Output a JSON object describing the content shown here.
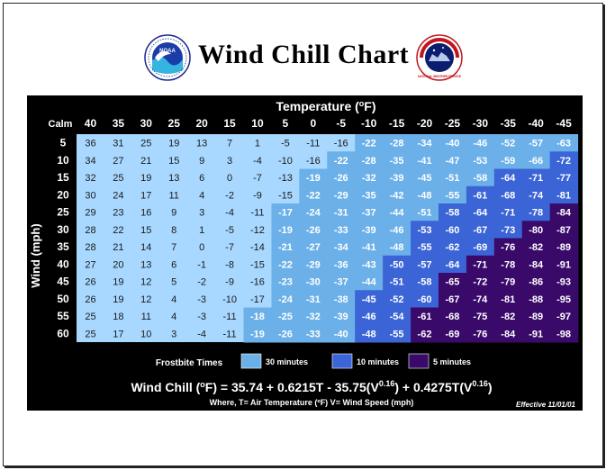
{
  "title": "Wind Chill Chart",
  "header": {
    "noaa_logo_text": "NOAA",
    "nws_logo_text": "NATIONAL WEATHER SERVICE"
  },
  "colors": {
    "panel_bg": "#000000",
    "band_30_minutes": "#6bb0e8",
    "band_10_minutes": "#3b64d6",
    "band_5_minutes": "#3a0a6a",
    "no_risk": "#a8d8ff"
  },
  "chart_data": {
    "type": "table",
    "title": "Temperature (ºF)",
    "ylabel": "Wind (mph)",
    "corner_label": "Calm",
    "temperatures": [
      40,
      35,
      30,
      25,
      20,
      15,
      10,
      5,
      0,
      -5,
      -10,
      -15,
      -20,
      -25,
      -30,
      -35,
      -40,
      -45
    ],
    "winds": [
      5,
      10,
      15,
      20,
      25,
      30,
      35,
      40,
      45,
      50,
      55,
      60
    ],
    "values": [
      [
        36,
        31,
        25,
        19,
        13,
        7,
        1,
        -5,
        -11,
        -16,
        -22,
        -28,
        -34,
        -40,
        -46,
        -52,
        -57,
        -63
      ],
      [
        34,
        27,
        21,
        15,
        9,
        3,
        -4,
        -10,
        -16,
        -22,
        -28,
        -35,
        -41,
        -47,
        -53,
        -59,
        -66,
        -72
      ],
      [
        32,
        25,
        19,
        13,
        6,
        0,
        -7,
        -13,
        -19,
        -26,
        -32,
        -39,
        -45,
        -51,
        -58,
        -64,
        -71,
        -77
      ],
      [
        30,
        24,
        17,
        11,
        4,
        -2,
        -9,
        -15,
        -22,
        -29,
        -35,
        -42,
        -48,
        -55,
        -61,
        -68,
        -74,
        -81
      ],
      [
        29,
        23,
        16,
        9,
        3,
        -4,
        -11,
        -17,
        -24,
        -31,
        -37,
        -44,
        -51,
        -58,
        -64,
        -71,
        -78,
        -84
      ],
      [
        28,
        22,
        15,
        8,
        1,
        -5,
        -12,
        -19,
        -26,
        -33,
        -39,
        -46,
        -53,
        -60,
        -67,
        -73,
        -80,
        -87
      ],
      [
        28,
        21,
        14,
        7,
        0,
        -7,
        -14,
        -21,
        -27,
        -34,
        -41,
        -48,
        -55,
        -62,
        -69,
        -76,
        -82,
        -89
      ],
      [
        27,
        20,
        13,
        6,
        -1,
        -8,
        -15,
        -22,
        -29,
        -36,
        -43,
        -50,
        -57,
        -64,
        -71,
        -78,
        -84,
        -91
      ],
      [
        26,
        19,
        12,
        5,
        -2,
        -9,
        -16,
        -23,
        -30,
        -37,
        -44,
        -51,
        -58,
        -65,
        -72,
        -79,
        -86,
        -93
      ],
      [
        26,
        19,
        12,
        4,
        -3,
        -10,
        -17,
        -24,
        -31,
        -38,
        -45,
        -52,
        -60,
        -67,
        -74,
        -81,
        -88,
        -95
      ],
      [
        25,
        18,
        11,
        4,
        -3,
        -11,
        -18,
        -25,
        -32,
        -39,
        -46,
        -54,
        -61,
        -68,
        -75,
        -82,
        -89,
        -97
      ],
      [
        25,
        17,
        10,
        3,
        -4,
        -11,
        -19,
        -26,
        -33,
        -40,
        -48,
        -55,
        -62,
        -69,
        -76,
        -84,
        -91,
        -98
      ]
    ],
    "frostbite_start_col": {
      "30": [
        10,
        9,
        8,
        8,
        7,
        7,
        7,
        7,
        7,
        7,
        6,
        6
      ],
      "10": [
        null,
        17,
        15,
        14,
        13,
        12,
        12,
        11,
        11,
        10,
        10,
        10
      ],
      "5": [
        null,
        null,
        null,
        null,
        17,
        16,
        15,
        14,
        13,
        13,
        12,
        12
      ]
    },
    "legend_title": "Frostbite Times",
    "legend": [
      {
        "label": "30 minutes",
        "color": "#6bb0e8"
      },
      {
        "label": "10 minutes",
        "color": "#3b64d6"
      },
      {
        "label": "5 minutes",
        "color": "#3a0a6a"
      }
    ],
    "formula": "Wind Chill (ºF) = 35.74 + 0.6215T - 35.75(V0.16) + 0.4275T(V0.16)",
    "formula_parts": {
      "lead": "Wind Chill (",
      "deg": "o",
      "mid": "F) = 35.74 + 0.6215T - 35.75(V",
      "sup1": "0.16",
      "mid2": ") + 0.4275T(V",
      "sup2": "0.16",
      "end": ")"
    },
    "where_text": "Where, T= Air Temperature (ºF)   V= Wind Speed (mph)",
    "effective": "Effective 11/01/01"
  }
}
